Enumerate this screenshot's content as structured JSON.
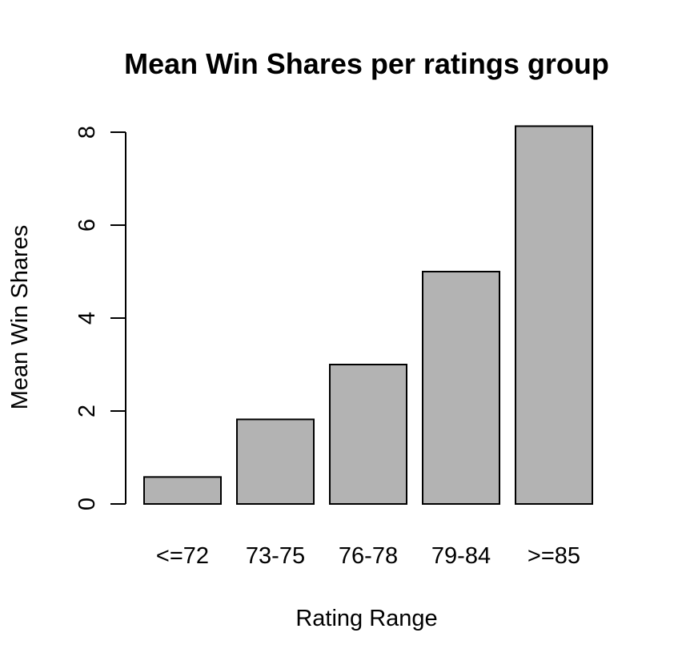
{
  "chart_data": {
    "type": "bar",
    "title": "Mean Win Shares per ratings group",
    "xlabel": "Rating Range",
    "ylabel": "Mean Win Shares",
    "categories": [
      "<=72",
      "73-75",
      "76-78",
      "79-84",
      ">=85"
    ],
    "values": [
      0.58,
      1.82,
      3.0,
      5.0,
      8.13
    ],
    "ylim": [
      0,
      8
    ],
    "yticks": [
      0,
      2,
      4,
      6,
      8
    ],
    "bar_color": "#b3b3b3",
    "grid": false,
    "legend": "none"
  }
}
